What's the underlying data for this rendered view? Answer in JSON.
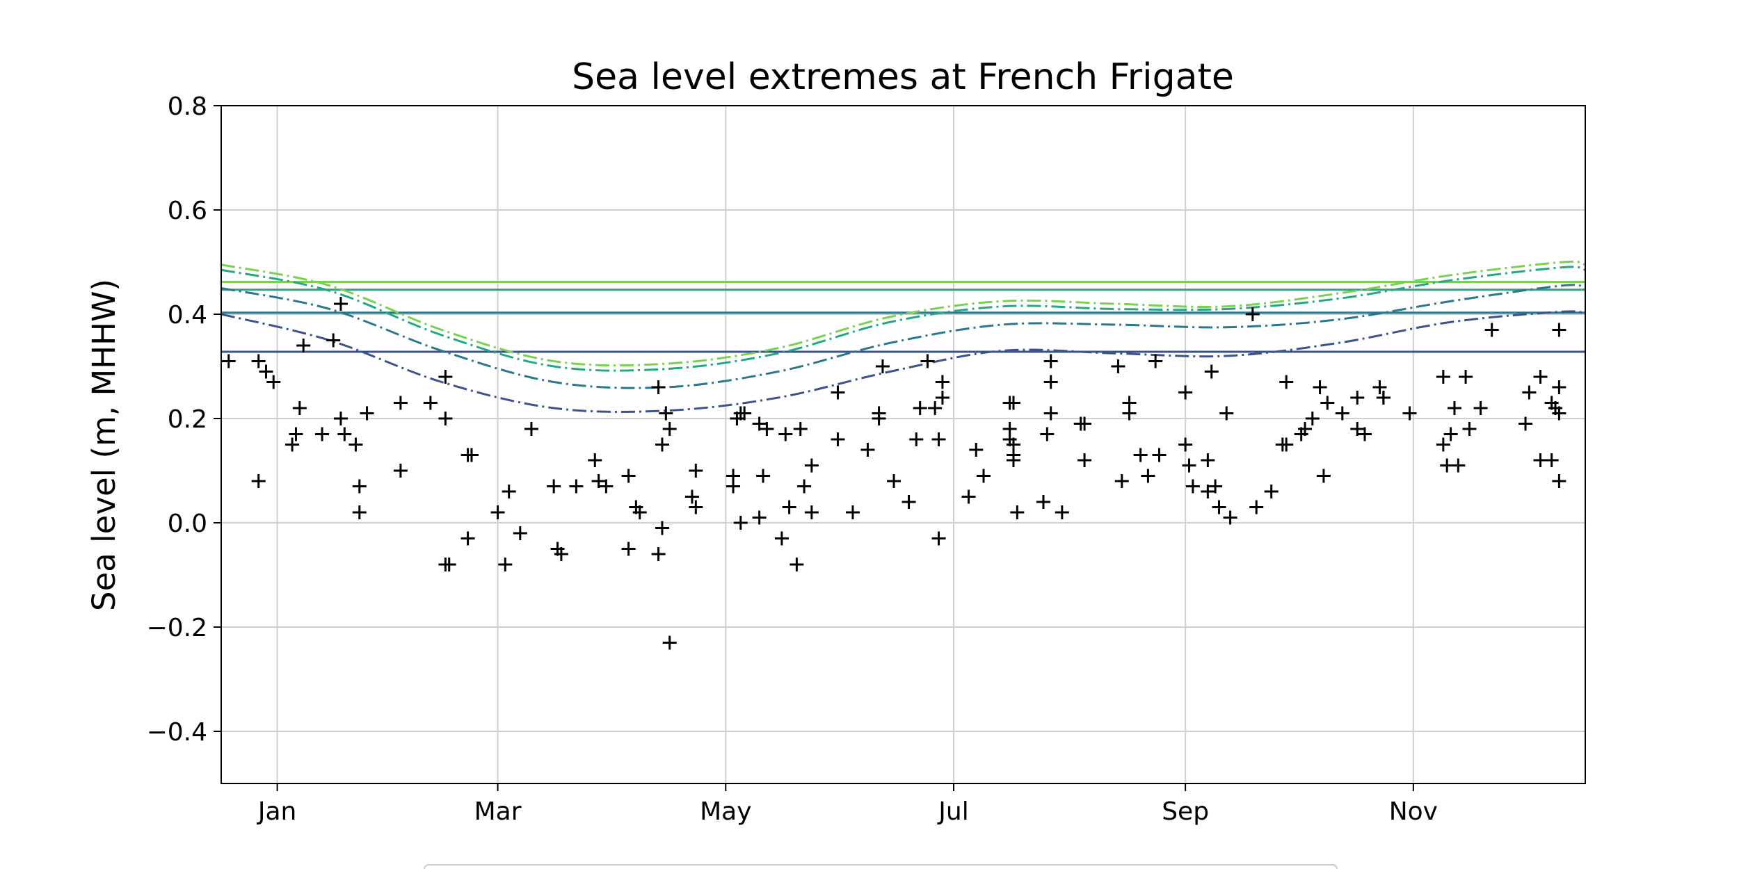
{
  "chart_data": {
    "type": "scatter",
    "title": "Sea level extremes at French Frigate",
    "ylabel": "Sea level (m, MHHW)",
    "xlim": [
      -14,
      351
    ],
    "ylim": [
      -0.5,
      0.8
    ],
    "xticks": [
      {
        "value": 1,
        "label": "Jan"
      },
      {
        "value": 60,
        "label": "Mar"
      },
      {
        "value": 121,
        "label": "May"
      },
      {
        "value": 182,
        "label": "Jul"
      },
      {
        "value": 244,
        "label": "Sep"
      },
      {
        "value": 305,
        "label": "Nov"
      }
    ],
    "yticks": [
      {
        "value": -0.4,
        "label": "−0.4"
      },
      {
        "value": -0.2,
        "label": "−0.2"
      },
      {
        "value": 0,
        "label": "0.0"
      },
      0.2,
      0.4,
      0.6,
      0.8
    ],
    "grid": true,
    "marker_color": "#000000",
    "x": [
      -12,
      -4,
      -4,
      -2,
      0,
      5,
      6,
      7,
      8,
      13,
      16,
      18,
      18,
      19,
      22,
      23,
      23,
      25,
      34,
      34,
      42,
      46,
      47,
      46,
      46,
      52,
      52,
      53,
      60,
      62,
      63,
      66,
      69,
      75,
      76,
      77,
      81,
      86,
      87,
      89,
      95,
      95,
      97,
      98,
      103,
      103,
      104,
      104,
      105,
      106,
      106,
      112,
      113,
      113,
      123,
      123,
      124,
      125,
      125,
      126,
      130,
      130,
      131,
      132,
      136,
      137,
      138,
      140,
      141,
      142,
      144,
      144,
      151,
      151,
      155,
      159,
      162,
      162,
      163,
      166,
      170,
      172,
      173,
      175,
      177,
      178,
      178,
      179,
      179,
      186,
      188,
      190,
      197,
      197,
      197,
      198,
      198,
      198,
      198,
      199,
      206,
      207,
      208,
      208,
      208,
      211,
      216,
      217,
      217,
      226,
      227,
      229,
      229,
      232,
      234,
      236,
      237,
      244,
      244,
      245,
      246,
      250,
      250,
      251,
      252,
      253,
      255,
      256,
      262,
      263,
      267,
      270,
      271,
      271,
      275,
      276,
      278,
      280,
      281,
      282,
      286,
      290,
      290,
      292,
      296,
      297,
      297,
      304,
      313,
      313,
      314,
      315,
      316,
      317,
      319,
      320,
      323,
      326,
      335,
      336,
      339,
      339,
      342,
      342,
      343,
      344,
      344,
      344,
      344
    ],
    "values": [
      0.31,
      0.31,
      0.08,
      0.29,
      0.27,
      0.15,
      0.17,
      0.22,
      0.34,
      0.17,
      0.35,
      0.42,
      0.2,
      0.17,
      0.15,
      0.07,
      0.02,
      0.21,
      0.1,
      0.23,
      0.23,
      -0.08,
      -0.08,
      0.28,
      0.2,
      -0.03,
      0.13,
      0.13,
      0.02,
      -0.08,
      0.06,
      -0.02,
      0.18,
      0.07,
      -0.05,
      -0.06,
      0.07,
      0.12,
      0.08,
      0.07,
      0.09,
      -0.05,
      0.03,
      0.02,
      0.26,
      -0.06,
      -0.01,
      0.15,
      0.21,
      0.18,
      -0.23,
      0.05,
      0.1,
      0.03,
      0.09,
      0.07,
      0.2,
      0,
      0.21,
      0.21,
      0.19,
      0.01,
      0.09,
      0.18,
      -0.03,
      0.17,
      0.03,
      -0.08,
      0.18,
      0.07,
      0.11,
      0.02,
      0.25,
      0.16,
      0.02,
      0.14,
      0.21,
      0.2,
      0.3,
      0.08,
      0.04,
      0.16,
      0.22,
      0.31,
      0.22,
      0.16,
      -0.03,
      0.24,
      0.27,
      0.05,
      0.14,
      0.09,
      0.18,
      0.23,
      0.16,
      0.13,
      0.23,
      0.15,
      0.12,
      0.02,
      0.04,
      0.17,
      0.31,
      0.27,
      0.21,
      0.02,
      0.19,
      0.19,
      0.12,
      0.3,
      0.08,
      0.23,
      0.21,
      0.13,
      0.09,
      0.31,
      0.13,
      0.25,
      0.15,
      0.11,
      0.07,
      0.06,
      0.12,
      0.29,
      0.07,
      0.03,
      0.21,
      0.01,
      0.4,
      0.03,
      0.06,
      0.15,
      0.27,
      0.15,
      0.17,
      0.18,
      0.2,
      0.26,
      0.09,
      0.23,
      0.21,
      0.18,
      0.24,
      0.17,
      0.26,
      0.24,
      0.24,
      0.21,
      0.28,
      0.15,
      0.11,
      0.17,
      0.22,
      0.11,
      0.28,
      0.18,
      0.22,
      0.37,
      0.19,
      0.25,
      0.28,
      0.12,
      0.23,
      0.12,
      0.22,
      0.26,
      0.21,
      0.37,
      0.08
    ],
    "curve_x": [
      -14,
      15,
      45,
      75,
      105,
      135,
      165,
      195,
      225,
      255,
      285,
      315,
      345,
      351
    ],
    "series": [
      {
        "color": "#3b528b",
        "level": 0.328,
        "values": [
          0.4,
          0.35,
          0.27,
          0.22,
          0.215,
          0.24,
          0.29,
          0.33,
          0.325,
          0.32,
          0.345,
          0.385,
          0.405,
          0.4
        ]
      },
      {
        "color": "#2a788e",
        "level": 0.403,
        "values": [
          0.45,
          0.41,
          0.33,
          0.27,
          0.26,
          0.29,
          0.345,
          0.38,
          0.38,
          0.375,
          0.39,
          0.425,
          0.455,
          0.45
        ]
      },
      {
        "color": "#22a884",
        "level": 0.447,
        "values": [
          0.485,
          0.445,
          0.36,
          0.3,
          0.295,
          0.325,
          0.385,
          0.415,
          0.41,
          0.41,
          0.43,
          0.465,
          0.49,
          0.485
        ]
      },
      {
        "color": "#7ad151",
        "level": 0.462,
        "values": [
          0.495,
          0.455,
          0.37,
          0.31,
          0.305,
          0.335,
          0.395,
          0.425,
          0.42,
          0.415,
          0.44,
          0.475,
          0.5,
          0.495
        ]
      }
    ]
  }
}
